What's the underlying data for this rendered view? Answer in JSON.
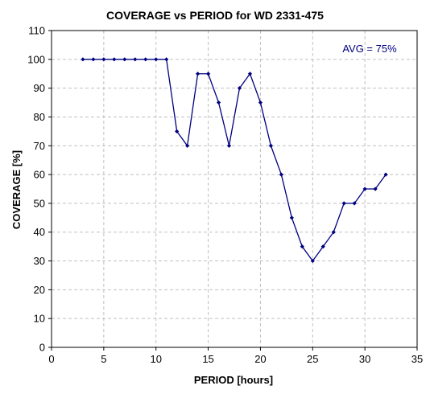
{
  "chart_data": {
    "type": "line",
    "title": "COVERAGE vs PERIOD for WD 2331-475",
    "xlabel": "PERIOD [hours]",
    "ylabel": "COVERAGE [%]",
    "xlim": [
      0,
      35
    ],
    "ylim": [
      0,
      110
    ],
    "xticks": [
      0,
      5,
      10,
      15,
      20,
      25,
      30,
      35
    ],
    "yticks": [
      0,
      10,
      20,
      30,
      40,
      50,
      60,
      70,
      80,
      90,
      100,
      110
    ],
    "grid": true,
    "annotation": "AVG = 75%",
    "line_color": "#000080",
    "series": [
      {
        "x": [
          3,
          4,
          5,
          6,
          7,
          8,
          9,
          10,
          11,
          12,
          13,
          14,
          15,
          16,
          17,
          18,
          19,
          20,
          21,
          22,
          23,
          24,
          25,
          26,
          27,
          28,
          29,
          30,
          31,
          32
        ],
        "y": [
          100,
          100,
          100,
          100,
          100,
          100,
          100,
          100,
          100,
          75,
          70,
          95,
          95,
          85,
          70,
          90,
          95,
          85,
          70,
          60,
          45,
          35,
          30,
          35,
          40,
          50,
          50,
          55,
          55,
          60
        ]
      }
    ]
  }
}
